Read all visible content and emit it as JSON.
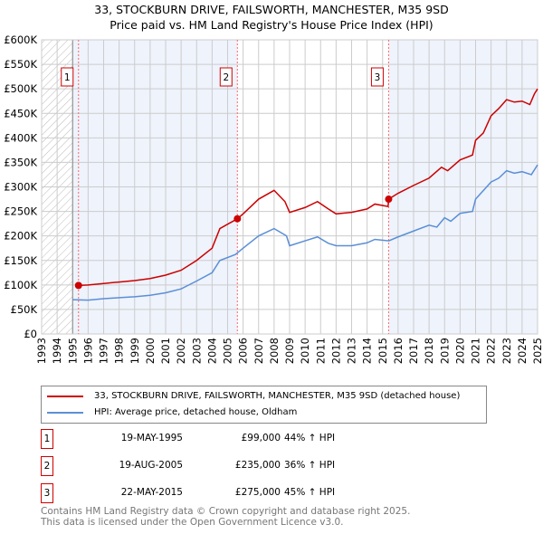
{
  "chart_data": {
    "type": "line",
    "title": "33, STOCKBURN DRIVE, FAILSWORTH, MANCHESTER, M35 9SD",
    "subtitle": "Price paid vs. HM Land Registry's House Price Index (HPI)",
    "xlim": [
      1993,
      2025
    ],
    "ylim": [
      0,
      600000
    ],
    "y_ticks": [
      "£0",
      "£50K",
      "£100K",
      "£150K",
      "£200K",
      "£250K",
      "£300K",
      "£350K",
      "£400K",
      "£450K",
      "£500K",
      "£550K",
      "£600K"
    ],
    "x_ticks": [
      "1993",
      "1994",
      "1995",
      "1996",
      "1997",
      "1998",
      "1999",
      "2000",
      "2001",
      "2002",
      "2003",
      "2004",
      "2005",
      "2006",
      "2007",
      "2008",
      "2009",
      "2010",
      "2011",
      "2012",
      "2013",
      "2014",
      "2015",
      "2016",
      "2017",
      "2018",
      "2019",
      "2020",
      "2021",
      "2022",
      "2023",
      "2024",
      "2025"
    ],
    "grid": true,
    "series": [
      {
        "name": "33, STOCKBURN DRIVE, FAILSWORTH, MANCHESTER, M35 9SD (detached house)",
        "color": "#cc0000",
        "x": [
          1995.38,
          1996,
          1997,
          1998,
          1999,
          2000,
          2001,
          2002,
          2003,
          2004,
          2004.5,
          2005.63,
          2006,
          2007,
          2008,
          2008.7,
          2009,
          2010,
          2010.8,
          2011.5,
          2012,
          2013,
          2014,
          2014.5,
          2015.35,
          2015.39,
          2016,
          2017,
          2018,
          2018.8,
          2019.2,
          2020,
          2020.8,
          2021,
          2021.5,
          2022,
          2022.5,
          2023,
          2023.5,
          2024,
          2024.5,
          2024.8,
          2025
        ],
        "y": [
          99000,
          100000,
          103000,
          106000,
          109000,
          113000,
          120000,
          130000,
          150000,
          175000,
          215000,
          235000,
          245000,
          275000,
          293000,
          270000,
          248000,
          258000,
          270000,
          255000,
          245000,
          248000,
          255000,
          265000,
          260000,
          275000,
          287000,
          303000,
          318000,
          340000,
          333000,
          355000,
          365000,
          395000,
          410000,
          445000,
          460000,
          478000,
          473000,
          475000,
          468000,
          490000,
          500000
        ]
      },
      {
        "name": "HPI: Average price, detached house, Oldham",
        "color": "#5b8fd6",
        "x": [
          1995,
          1996,
          1997,
          1998,
          1999,
          2000,
          2001,
          2002,
          2003,
          2004,
          2004.5,
          2005.5,
          2006,
          2007,
          2008,
          2008.8,
          2009,
          2010,
          2010.8,
          2011.5,
          2012,
          2013,
          2014,
          2014.5,
          2015.4,
          2016,
          2017,
          2018,
          2018.5,
          2019,
          2019.4,
          2020,
          2020.8,
          2021,
          2022,
          2022.5,
          2023,
          2023.5,
          2024,
          2024.6,
          2025
        ],
        "y": [
          70000,
          69000,
          72000,
          74000,
          76000,
          79000,
          84000,
          92000,
          108000,
          125000,
          150000,
          162000,
          175000,
          200000,
          215000,
          200000,
          180000,
          190000,
          198000,
          185000,
          180000,
          180000,
          186000,
          193000,
          190000,
          198000,
          210000,
          222000,
          218000,
          237000,
          230000,
          246000,
          250000,
          275000,
          310000,
          318000,
          333000,
          328000,
          331000,
          325000,
          345000
        ]
      }
    ],
    "sales": [
      {
        "label": "1",
        "x": 1995.38,
        "y": 99000,
        "date": "19-MAY-1995",
        "price": "£99,000",
        "hpi": "44% ↑ HPI"
      },
      {
        "label": "2",
        "x": 2005.63,
        "y": 235000,
        "date": "19-AUG-2005",
        "price": "£235,000",
        "hpi": "36% ↑ HPI"
      },
      {
        "label": "3",
        "x": 2015.39,
        "y": 275000,
        "date": "22-MAY-2015",
        "price": "£275,000",
        "hpi": "45% ↑ HPI"
      }
    ],
    "footer": [
      "Contains HM Land Registry data © Crown copyright and database right 2025.",
      "This data is licensed under the Open Government Licence v3.0."
    ]
  }
}
